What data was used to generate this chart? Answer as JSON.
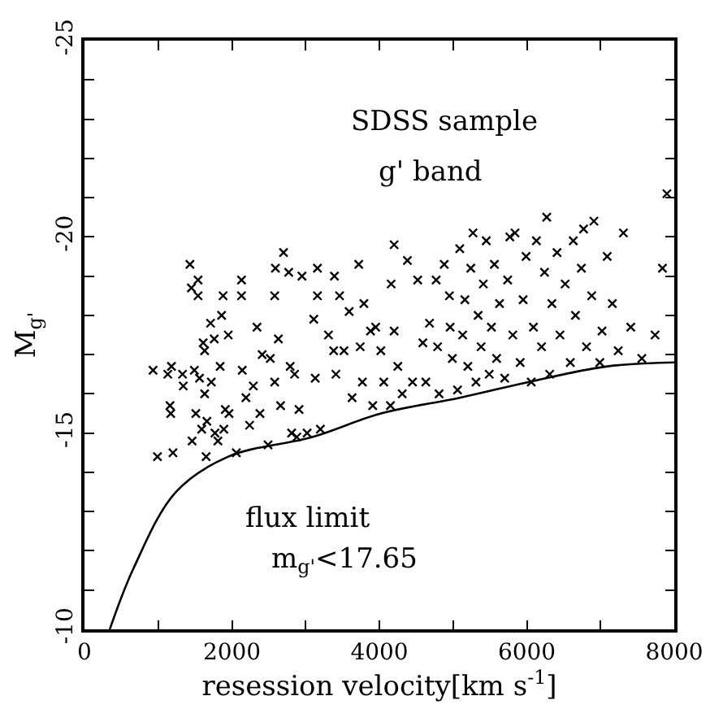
{
  "chart_data": {
    "type": "scatter",
    "xlabel": "resession velocity[km s$^{-1}$]",
    "ylabel": "M$_{g'}$",
    "annotations": [
      "SDSS sample",
      "g' band",
      "flux limit",
      "m$_{g'}$<17.65"
    ],
    "xlim": [
      0,
      8000
    ],
    "xticks": [
      0,
      {
        "value": 1000,
        "label": null
      },
      2000,
      {
        "value": 3000,
        "label": null
      },
      4000,
      {
        "value": 5000,
        "label": null
      },
      6000,
      {
        "value": 7000,
        "label": null
      },
      8000
    ],
    "ylim": [
      -10,
      -25
    ],
    "yticks": [
      -25,
      {
        "value": -24,
        "label": null
      },
      {
        "value": -23,
        "label": null
      },
      {
        "value": -22,
        "label": null
      },
      {
        "value": -21,
        "label": null
      },
      -20,
      {
        "value": -19,
        "label": null
      },
      {
        "value": -18,
        "label": null
      },
      {
        "value": -17,
        "label": null
      },
      {
        "value": -16,
        "label": null
      },
      -15,
      {
        "value": -14,
        "label": null
      },
      {
        "value": -13,
        "label": null
      },
      {
        "value": -12,
        "label": null
      },
      {
        "value": -11,
        "label": null
      },
      -10
    ],
    "marker": "cross",
    "series": [
      {
        "color": "#000000",
        "x": [
          930,
          990,
          1130,
          1180,
          1160,
          1170,
          1200,
          1330,
          1340,
          1430,
          1450,
          1460,
          1490,
          1510,
          1540,
          1540,
          1560,
          1590,
          1610,
          1630,
          1630,
          1650,
          1660,
          1710,
          1720,
          1760,
          1770,
          1810,
          1840,
          1860,
          1880,
          1890,
          1910,
          1950,
          1960,
          2060,
          2130,
          2130,
          2140,
          2190,
          2240,
          2290,
          2340,
          2380,
          2410,
          2490,
          2520,
          2580,
          2580,
          2590,
          2630,
          2660,
          2700,
          2770,
          2790,
          2810,
          2850,
          2880,
          2910,
          2950,
          3020,
          3110,
          3130,
          3160,
          3160,
          3200,
          3310,
          3380,
          3390,
          3410,
          3460,
          3520,
          3590,
          3630,
          3720,
          3740,
          3770,
          3790,
          3880,
          3910,
          3950,
          4020,
          4060,
          4150,
          4160,
          4200,
          4200,
          4250,
          4310,
          4380,
          4450,
          4520,
          4590,
          4630,
          4680,
          4770,
          4790,
          4810,
          4880,
          4950,
          4960,
          4990,
          5060,
          5090,
          5130,
          5160,
          5200,
          5240,
          5270,
          5310,
          5340,
          5380,
          5410,
          5450,
          5490,
          5520,
          5560,
          5590,
          5630,
          5700,
          5740,
          5770,
          5810,
          5840,
          5910,
          5950,
          5990,
          6060,
          6090,
          6130,
          6200,
          6240,
          6270,
          6310,
          6340,
          6410,
          6450,
          6520,
          6590,
          6630,
          6660,
          6740,
          6770,
          6810,
          6880,
          6910,
          6990,
          7020,
          7090,
          7160,
          7240,
          7310,
          7410,
          7560,
          7740,
          7840,
          7900
        ],
        "values": [
          -16.6,
          -14.4,
          -16.5,
          -16.7,
          -15.7,
          -15.5,
          -14.5,
          -16.5,
          -16.2,
          -19.3,
          -18.7,
          -14.8,
          -16.6,
          -15.5,
          -18.9,
          -18.5,
          -16.4,
          -15.1,
          -17.3,
          -17.1,
          -16.0,
          -14.4,
          -15.3,
          -17.8,
          -16.3,
          -17.4,
          -15.0,
          -14.8,
          -16.7,
          -18.0,
          -18.5,
          -15.1,
          -15.6,
          -17.5,
          -15.5,
          -14.5,
          -18.9,
          -18.5,
          -16.6,
          -15.9,
          -15.2,
          -16.2,
          -17.7,
          -15.5,
          -17.0,
          -14.7,
          -16.9,
          -18.5,
          -16.3,
          -19.2,
          -17.4,
          -15.7,
          -19.6,
          -19.1,
          -16.7,
          -15.0,
          -16.5,
          -14.9,
          -15.6,
          -19.0,
          -15.0,
          -17.9,
          -16.4,
          -19.2,
          -18.5,
          -15.1,
          -17.5,
          -17.1,
          -19.0,
          -16.5,
          -18.5,
          -17.1,
          -18.1,
          -15.9,
          -19.3,
          -17.2,
          -16.3,
          -18.3,
          -17.6,
          -15.7,
          -17.7,
          -17.1,
          -16.3,
          -15.7,
          -18.8,
          -19.8,
          -17.6,
          -16.7,
          -16.0,
          -19.4,
          -16.3,
          -18.9,
          -17.3,
          -16.3,
          -17.8,
          -18.9,
          -17.2,
          -16.0,
          -19.3,
          -18.5,
          -17.7,
          -16.9,
          -16.1,
          -19.7,
          -17.5,
          -18.4,
          -16.7,
          -19.2,
          -20.1,
          -16.3,
          -18.0,
          -17.2,
          -18.8,
          -19.9,
          -16.5,
          -17.7,
          -19.3,
          -16.9,
          -18.3,
          -16.4,
          -18.9,
          -20.0,
          -17.5,
          -20.1,
          -16.8,
          -18.4,
          -19.5,
          -16.3,
          -17.7,
          -19.9,
          -17.2,
          -19.1,
          -20.5,
          -16.5,
          -18.3,
          -19.6,
          -17.5,
          -18.8,
          -16.8,
          -19.9,
          -18.0,
          -19.2,
          -20.2,
          -17.2,
          -18.5,
          -20.4,
          -16.8,
          -17.6,
          -19.5,
          -18.3,
          -17.1,
          -20.1,
          -17.7,
          -16.9,
          -17.5,
          -19.2,
          -21.1
        ]
      },
      {
        "type": "line",
        "color": "#000000",
        "marker": "none",
        "line_style": "solid",
        "x": [
          343,
          664,
          1240,
          1950,
          3090,
          4020,
          5090,
          6020,
          7090,
          8000
        ],
        "values": [
          -10.0,
          -11.55,
          -13.5,
          -14.4,
          -14.9,
          -15.5,
          -15.9,
          -16.3,
          -16.7,
          -16.8
        ]
      }
    ]
  }
}
